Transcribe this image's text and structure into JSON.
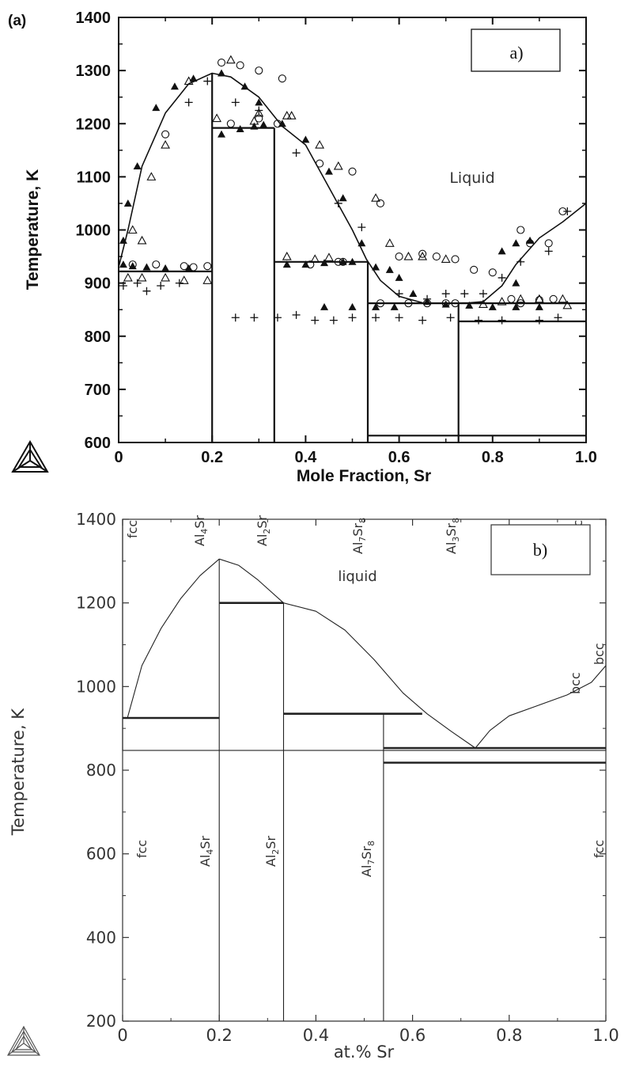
{
  "chart_data": [
    {
      "type": "scatter",
      "panel_tag": "(a)",
      "legend_box": "a)",
      "xlabel": "Mole Fraction, Sr",
      "ylabel": "Temperature, K",
      "xlim": [
        0,
        1
      ],
      "ylim": [
        600,
        1400
      ],
      "xticks": [
        "0",
        "0.2",
        "0.4",
        "0.6",
        "0.8",
        "1.0"
      ],
      "yticks": [
        "600",
        "700",
        "800",
        "900",
        "1000",
        "1100",
        "1200",
        "1300",
        "1400"
      ],
      "region_labels": {
        "liquid": "Liquid",
        "bcc": "bcc",
        "fcc_left": "fcc",
        "fcc_right": "fcc",
        "al4sr": "Al4Sr",
        "al2sr": "Al2Sr",
        "al7sr8": "Al7Sr8",
        "al3sr8": "Al3Sr8"
      },
      "lines": [
        {
          "name": "liquidus",
          "points": [
            [
              0,
              930
            ],
            [
              0.02,
              1000
            ],
            [
              0.05,
              1120
            ],
            [
              0.1,
              1220
            ],
            [
              0.15,
              1275
            ],
            [
              0.2,
              1295
            ],
            [
              0.24,
              1288
            ],
            [
              0.3,
              1250
            ],
            [
              0.35,
              1195
            ],
            [
              0.4,
              1160
            ],
            [
              0.45,
              1080
            ],
            [
              0.5,
              1000
            ],
            [
              0.53,
              945
            ],
            [
              0.56,
              905
            ],
            [
              0.6,
              875
            ],
            [
              0.65,
              863
            ],
            [
              0.7,
              862
            ],
            [
              0.75,
              863
            ],
            [
              0.78,
              865
            ],
            [
              0.82,
              895
            ],
            [
              0.85,
              935
            ],
            [
              0.9,
              985
            ],
            [
              0.95,
              1015
            ],
            [
              1.0,
              1050
            ]
          ]
        },
        {
          "name": "eutectic-Al-Al4Sr",
          "points": [
            [
              0,
              922
            ],
            [
              0.2,
              922
            ]
          ]
        },
        {
          "name": "Al4Sr-Al2Sr",
          "points": [
            [
              0.2,
              1192
            ],
            [
              0.333,
              1192
            ]
          ]
        },
        {
          "name": "Al2Sr-Al7Sr8",
          "points": [
            [
              0.333,
              940
            ],
            [
              0.533,
              940
            ]
          ]
        },
        {
          "name": "eutectic-right",
          "points": [
            [
              0.533,
              862
            ],
            [
              1.0,
              862
            ]
          ]
        },
        {
          "name": "Al3Sr8-Sr",
          "points": [
            [
              0.727,
              828
            ],
            [
              1.0,
              828
            ]
          ]
        },
        {
          "name": "low-horizontal",
          "points": [
            [
              0.533,
              613
            ],
            [
              1.0,
              613
            ]
          ]
        },
        {
          "name": "Al4Sr-vertical",
          "points": [
            [
              0.2,
              600
            ],
            [
              0.2,
              1295
            ]
          ]
        },
        {
          "name": "Al2Sr-vertical",
          "points": [
            [
              0.333,
              600
            ],
            [
              0.333,
              1192
            ]
          ]
        },
        {
          "name": "Al7Sr8-vertical",
          "points": [
            [
              0.533,
              600
            ],
            [
              0.533,
              940
            ]
          ]
        },
        {
          "name": "Al3Sr8-vertical",
          "points": [
            [
              0.727,
              600
            ],
            [
              0.727,
              862
            ]
          ]
        }
      ],
      "series": [
        {
          "name": "",
          "marker": "filled-triangle",
          "points": [
            [
              0.01,
              980
            ],
            [
              0.02,
              1050
            ],
            [
              0.04,
              1120
            ],
            [
              0.08,
              1230
            ],
            [
              0.12,
              1270
            ],
            [
              0.16,
              1285
            ],
            [
              0.22,
              1295
            ],
            [
              0.27,
              1270
            ],
            [
              0.3,
              1240
            ],
            [
              0.35,
              1200
            ],
            [
              0.4,
              1170
            ],
            [
              0.45,
              1110
            ],
            [
              0.48,
              1060
            ],
            [
              0.52,
              975
            ],
            [
              0.55,
              930
            ],
            [
              0.6,
              910
            ],
            [
              0.63,
              880
            ],
            [
              0.66,
              865
            ],
            [
              0.7,
              860
            ],
            [
              0.75,
              858
            ],
            [
              0.8,
              855
            ],
            [
              0.85,
              855
            ],
            [
              0.9,
              855
            ],
            [
              0.82,
              960
            ],
            [
              0.85,
              975
            ],
            [
              0.88,
              980
            ],
            [
              0.85,
              900
            ],
            [
              0.01,
              935
            ],
            [
              0.03,
              932
            ],
            [
              0.06,
              930
            ],
            [
              0.1,
              928
            ],
            [
              0.15,
              928
            ],
            [
              0.22,
              1180
            ],
            [
              0.26,
              1190
            ],
            [
              0.29,
              1195
            ],
            [
              0.31,
              1198
            ],
            [
              0.36,
              935
            ],
            [
              0.4,
              935
            ],
            [
              0.44,
              938
            ],
            [
              0.48,
              940
            ],
            [
              0.5,
              940
            ],
            [
              0.44,
              855
            ],
            [
              0.5,
              855
            ],
            [
              0.55,
              855
            ],
            [
              0.59,
              855
            ],
            [
              0.58,
              925
            ]
          ]
        },
        {
          "name": "",
          "marker": "open-triangle",
          "points": [
            [
              0.03,
              1000
            ],
            [
              0.05,
              980
            ],
            [
              0.07,
              1100
            ],
            [
              0.1,
              1160
            ],
            [
              0.15,
              1280
            ],
            [
              0.21,
              1210
            ],
            [
              0.24,
              1320
            ],
            [
              0.3,
              1220
            ],
            [
              0.36,
              1215
            ],
            [
              0.43,
              1160
            ],
            [
              0.47,
              1120
            ],
            [
              0.55,
              1060
            ],
            [
              0.58,
              975
            ],
            [
              0.62,
              950
            ],
            [
              0.65,
              950
            ],
            [
              0.7,
              945
            ],
            [
              0.78,
              860
            ],
            [
              0.82,
              865
            ],
            [
              0.86,
              870
            ],
            [
              0.9,
              870
            ],
            [
              0.95,
              870
            ],
            [
              0.02,
              910
            ],
            [
              0.05,
              910
            ],
            [
              0.1,
              910
            ],
            [
              0.14,
              905
            ],
            [
              0.19,
              905
            ],
            [
              0.36,
              950
            ],
            [
              0.42,
              945
            ],
            [
              0.45,
              948
            ],
            [
              0.37,
              1215
            ],
            [
              0.29,
              1205
            ],
            [
              0.96,
              858
            ]
          ]
        },
        {
          "name": "",
          "marker": "open-circle",
          "points": [
            [
              0.1,
              1180
            ],
            [
              0.22,
              1315
            ],
            [
              0.26,
              1310
            ],
            [
              0.3,
              1300
            ],
            [
              0.35,
              1285
            ],
            [
              0.43,
              1125
            ],
            [
              0.5,
              1110
            ],
            [
              0.56,
              1050
            ],
            [
              0.6,
              950
            ],
            [
              0.65,
              955
            ],
            [
              0.68,
              950
            ],
            [
              0.72,
              945
            ],
            [
              0.76,
              925
            ],
            [
              0.8,
              920
            ],
            [
              0.84,
              870
            ],
            [
              0.86,
              1000
            ],
            [
              0.88,
              975
            ],
            [
              0.92,
              975
            ],
            [
              0.95,
              1035
            ],
            [
              0.03,
              935
            ],
            [
              0.08,
              935
            ],
            [
              0.14,
              932
            ],
            [
              0.16,
              930
            ],
            [
              0.19,
              932
            ],
            [
              0.24,
              1200
            ],
            [
              0.3,
              1210
            ],
            [
              0.34,
              1200
            ],
            [
              0.41,
              935
            ],
            [
              0.47,
              940
            ],
            [
              0.48,
              940
            ],
            [
              0.56,
              862
            ],
            [
              0.62,
              862
            ],
            [
              0.66,
              862
            ],
            [
              0.7,
              862
            ],
            [
              0.72,
              862
            ],
            [
              0.86,
              862
            ],
            [
              0.9,
              868
            ],
            [
              0.93,
              870
            ]
          ]
        },
        {
          "name": "",
          "marker": "plus",
          "points": [
            [
              0.01,
              895
            ],
            [
              0.04,
              900
            ],
            [
              0.06,
              885
            ],
            [
              0.09,
              895
            ],
            [
              0.13,
              900
            ],
            [
              0.15,
              1240
            ],
            [
              0.19,
              1280
            ],
            [
              0.25,
              835
            ],
            [
              0.29,
              835
            ],
            [
              0.34,
              835
            ],
            [
              0.38,
              840
            ],
            [
              0.42,
              830
            ],
            [
              0.46,
              830
            ],
            [
              0.5,
              835
            ],
            [
              0.55,
              835
            ],
            [
              0.6,
              835
            ],
            [
              0.65,
              830
            ],
            [
              0.71,
              835
            ],
            [
              0.77,
              830
            ],
            [
              0.82,
              830
            ],
            [
              0.9,
              830
            ],
            [
              0.94,
              835
            ],
            [
              0.25,
              1240
            ],
            [
              0.3,
              1225
            ],
            [
              0.38,
              1145
            ],
            [
              0.47,
              1050
            ],
            [
              0.52,
              1005
            ],
            [
              0.6,
              880
            ],
            [
              0.66,
              870
            ],
            [
              0.7,
              880
            ],
            [
              0.74,
              880
            ],
            [
              0.78,
              880
            ],
            [
              0.82,
              910
            ],
            [
              0.86,
              940
            ],
            [
              0.92,
              960
            ],
            [
              0.96,
              1035
            ]
          ]
        }
      ]
    },
    {
      "type": "line",
      "legend_box": "b)",
      "xlabel": "at.% Sr",
      "ylabel": "Temperature, K",
      "xlim": [
        0,
        1
      ],
      "ylim": [
        200,
        1400
      ],
      "xticks": [
        "0",
        "0.2",
        "0.4",
        "0.6",
        "0.8",
        "1.0"
      ],
      "yticks": [
        "200",
        "400",
        "600",
        "800",
        "1000",
        "1200",
        "1400"
      ],
      "region_labels": {
        "liquid": "liquid",
        "bcc": "bcc",
        "fcc_left": "fcc",
        "fcc_right": "fcc",
        "al4sr": "Al4Sr",
        "al2sr": "Al2Sr",
        "al7sr8": "Al7Sr8"
      },
      "lines": [
        {
          "name": "liquidus-left",
          "points": [
            [
              0.01,
              925
            ],
            [
              0.04,
              1050
            ],
            [
              0.08,
              1140
            ],
            [
              0.12,
              1210
            ],
            [
              0.16,
              1265
            ],
            [
              0.2,
              1305
            ]
          ]
        },
        {
          "name": "liquidus-mid",
          "points": [
            [
              0.2,
              1305
            ],
            [
              0.24,
              1290
            ],
            [
              0.28,
              1255
            ],
            [
              0.333,
              1200
            ]
          ]
        },
        {
          "name": "liquidus-right",
          "points": [
            [
              0.333,
              1200
            ],
            [
              0.4,
              1180
            ],
            [
              0.46,
              1135
            ],
            [
              0.52,
              1065
            ],
            [
              0.58,
              985
            ],
            [
              0.63,
              935
            ],
            [
              0.68,
              893
            ],
            [
              0.73,
              853
            ]
          ]
        },
        {
          "name": "bcc-liquidus",
          "points": [
            [
              0.73,
              853
            ],
            [
              0.76,
              895
            ],
            [
              0.8,
              930
            ],
            [
              0.86,
              955
            ],
            [
              0.92,
              980
            ],
            [
              0.97,
              1010
            ],
            [
              1.0,
              1050
            ]
          ]
        },
        {
          "name": "h-fcc-Al4Sr",
          "points": [
            [
              0,
              925
            ],
            [
              0.2,
              925
            ]
          ]
        },
        {
          "name": "h-Al4Sr-Al2Sr",
          "points": [
            [
              0.2,
              1200
            ],
            [
              0.333,
              1200
            ]
          ]
        },
        {
          "name": "h-Al2Sr-Al7Sr8",
          "points": [
            [
              0.333,
              935
            ],
            [
              0.62,
              935
            ]
          ]
        },
        {
          "name": "h-eutectic-right",
          "points": [
            [
              0.54,
              853
            ],
            [
              1.0,
              853
            ]
          ]
        },
        {
          "name": "h-low",
          "points": [
            [
              0.54,
              818
            ],
            [
              1.0,
              818
            ]
          ]
        },
        {
          "name": "v-Al4Sr",
          "points": [
            [
              0.2,
              200
            ],
            [
              0.2,
              1305
            ]
          ]
        },
        {
          "name": "v-Al2Sr",
          "points": [
            [
              0.333,
              200
            ],
            [
              0.333,
              1200
            ]
          ]
        },
        {
          "name": "v-Al7Sr8",
          "points": [
            [
              0.54,
              200
            ],
            [
              0.54,
              935
            ]
          ]
        }
      ]
    }
  ]
}
